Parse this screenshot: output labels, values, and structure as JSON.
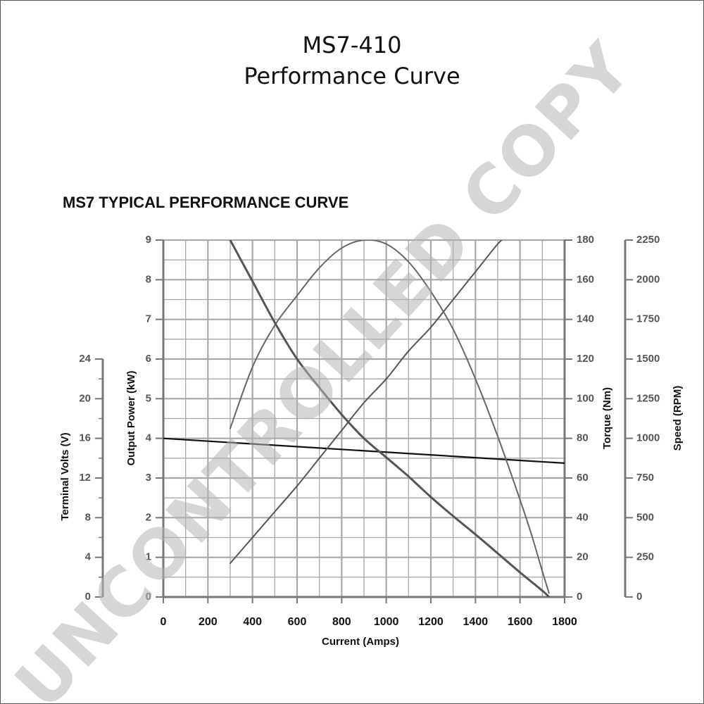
{
  "title_line1": "MS7-410",
  "title_line2": "Performance Curve",
  "chart_heading": "MS7 TYPICAL PERFORMANCE CURVE",
  "watermark": "UNCONTROLLED COPY",
  "chart_data": {
    "type": "line",
    "xlabel": "Current (Amps)",
    "xlim": [
      0,
      1800
    ],
    "x_ticks": [
      0,
      200,
      400,
      600,
      800,
      1000,
      1200,
      1400,
      1600,
      1800
    ],
    "grid": true,
    "axes": {
      "volts": {
        "label": "Terminal Volts (V)",
        "range": [
          0,
          24
        ],
        "ticks": [
          0,
          4,
          8,
          12,
          16,
          20,
          24
        ]
      },
      "power": {
        "label": "Output Power (kW)",
        "range": [
          0,
          9
        ],
        "ticks": [
          0,
          1,
          2,
          3,
          4,
          5,
          6,
          7,
          8,
          9
        ]
      },
      "torque": {
        "label": "Torque (Nm)",
        "range": [
          0,
          180
        ],
        "ticks": [
          0,
          20,
          40,
          60,
          80,
          100,
          120,
          140,
          160,
          180
        ]
      },
      "speed": {
        "label": "Speed (RPM)",
        "range": [
          0,
          2250
        ],
        "ticks": [
          0,
          250,
          500,
          750,
          1000,
          1250,
          1500,
          1750,
          2000,
          2250
        ]
      }
    },
    "series": [
      {
        "key": "voltage",
        "axis": "volts",
        "color": "#111111",
        "width": 2.2,
        "points": [
          [
            0,
            16
          ],
          [
            1800,
            13.5
          ]
        ]
      },
      {
        "key": "power",
        "axis": "power",
        "color": "#666666",
        "width": 2,
        "points": [
          [
            300,
            4.25
          ],
          [
            400,
            5.8
          ],
          [
            500,
            6.85
          ],
          [
            600,
            7.6
          ],
          [
            700,
            8.3
          ],
          [
            800,
            8.8
          ],
          [
            900,
            9.0
          ],
          [
            1000,
            8.9
          ],
          [
            1100,
            8.45
          ],
          [
            1200,
            7.7
          ],
          [
            1300,
            6.75
          ],
          [
            1400,
            5.5
          ],
          [
            1500,
            4.05
          ],
          [
            1600,
            2.45
          ],
          [
            1650,
            1.6
          ],
          [
            1700,
            0.65
          ],
          [
            1730,
            0.1
          ]
        ]
      },
      {
        "key": "torque",
        "axis": "torque",
        "color": "#555555",
        "width": 2,
        "points": [
          [
            300,
            17
          ],
          [
            400,
            30
          ],
          [
            500,
            43
          ],
          [
            600,
            56
          ],
          [
            700,
            70
          ],
          [
            800,
            84
          ],
          [
            900,
            98
          ],
          [
            1000,
            110
          ],
          [
            1100,
            124
          ],
          [
            1200,
            136
          ],
          [
            1300,
            150
          ],
          [
            1400,
            164
          ],
          [
            1500,
            178
          ],
          [
            1550,
            183
          ]
        ]
      },
      {
        "key": "speed",
        "axis": "speed",
        "color": "#555555",
        "width": 3,
        "points": [
          [
            300,
            2250
          ],
          [
            400,
            1990
          ],
          [
            500,
            1730
          ],
          [
            600,
            1500
          ],
          [
            700,
            1320
          ],
          [
            800,
            1150
          ],
          [
            900,
            1000
          ],
          [
            1000,
            880
          ],
          [
            1100,
            760
          ],
          [
            1200,
            630
          ],
          [
            1300,
            510
          ],
          [
            1400,
            395
          ],
          [
            1500,
            275
          ],
          [
            1600,
            155
          ],
          [
            1700,
            40
          ],
          [
            1730,
            0
          ]
        ]
      }
    ]
  }
}
